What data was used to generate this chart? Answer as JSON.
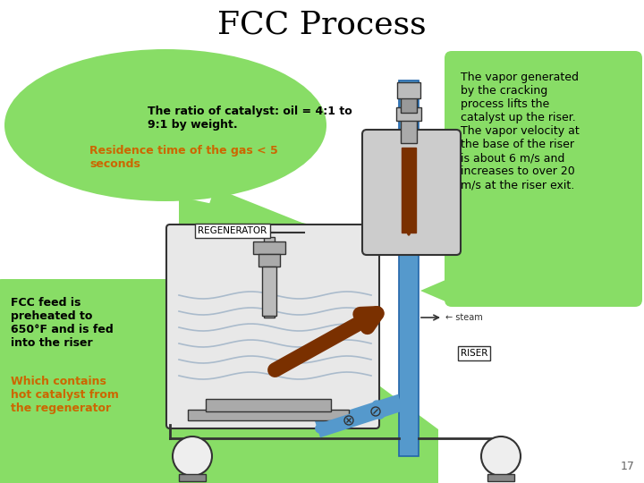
{
  "title": "FCC Process",
  "title_fontsize": 26,
  "title_fontweight": "normal",
  "bg_color": "#ffffff",
  "bubble1_text_black": "The ratio of catalyst: oil = 4:1 to\n9:1 by weight.",
  "bubble1_text_orange": "Residence time of the gas < 5\nseconds",
  "bubble1_color": "#88dd66",
  "bubble2_text": "The vapor generated\nby the cracking\nprocess lifts the\ncatalyst up the riser.\nThe vapor velocity at\nthe base of the riser\nis about 6 m/s and\nincreases to over 20\nm/s at the riser exit.",
  "bubble2_color": "#88dd66",
  "bubble3_text_black": "FCC feed is\npreheated to\n650°F and is fed\ninto the riser",
  "bubble3_text_orange": "Which contains\nhot catalyst from\nthe regenerator",
  "bubble3_color": "#88dd66",
  "regen_label": "REGENERATOR",
  "riser_label": "RISER",
  "steam_label": "← steam",
  "page_number": "17",
  "orange_color": "#cc6600",
  "black_color": "#000000",
  "green_color": "#88dd66",
  "riser_color": "#5599cc",
  "brown_color": "#7a3000",
  "diagram_line": "#333333",
  "vessel_fill": "#e8e8e8",
  "wave_color": "#aabbcc"
}
